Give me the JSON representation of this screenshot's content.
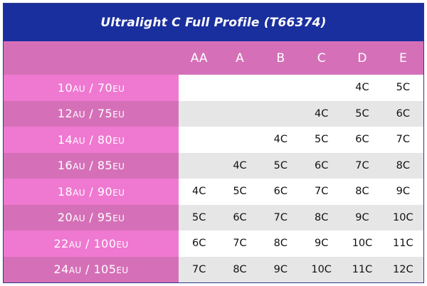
{
  "title": "Ultralight C Full Profile (T66374)",
  "columns": [
    "AA",
    "A",
    "B",
    "C",
    "D",
    "E"
  ],
  "rows": [
    {
      "au": "10",
      "au_unit": "AU",
      "sep": " / ",
      "eu": "70",
      "eu_unit": "EU",
      "cells": [
        "",
        "",
        "",
        "",
        "4C",
        "5C"
      ]
    },
    {
      "au": "12",
      "au_unit": "AU",
      "sep": " / ",
      "eu": "75",
      "eu_unit": "EU",
      "cells": [
        "",
        "",
        "",
        "4C",
        "5C",
        "6C"
      ]
    },
    {
      "au": "14",
      "au_unit": "AU",
      "sep": " / ",
      "eu": "80",
      "eu_unit": "EU",
      "cells": [
        "",
        "",
        "4C",
        "5C",
        "6C",
        "7C"
      ]
    },
    {
      "au": "16",
      "au_unit": "AU",
      "sep": " / ",
      "eu": "85",
      "eu_unit": "EU",
      "cells": [
        "",
        "4C",
        "5C",
        "6C",
        "7C",
        "8C"
      ]
    },
    {
      "au": "18",
      "au_unit": "AU",
      "sep": " / ",
      "eu": "90",
      "eu_unit": "EU",
      "cells": [
        "4C",
        "5C",
        "6C",
        "7C",
        "8C",
        "9C"
      ]
    },
    {
      "au": "20",
      "au_unit": "AU",
      "sep": " / ",
      "eu": "95",
      "eu_unit": "EU",
      "cells": [
        "5C",
        "6C",
        "7C",
        "8C",
        "9C",
        "10C"
      ]
    },
    {
      "au": "22",
      "au_unit": "AU",
      "sep": " / ",
      "eu": "100",
      "eu_unit": "EU",
      "cells": [
        "6C",
        "7C",
        "8C",
        "9C",
        "10C",
        "11C"
      ]
    },
    {
      "au": "24",
      "au_unit": "AU",
      "sep": " / ",
      "eu": "105",
      "eu_unit": "EU",
      "cells": [
        "7C",
        "8C",
        "9C",
        "10C",
        "11C",
        "12C"
      ]
    }
  ],
  "colors": {
    "title_bg": "#1a2f9e",
    "header_bg": "#d570b8",
    "label_bg_light": "#ef78d0",
    "label_bg_dark": "#d570b8",
    "cell_bg_white": "#ffffff",
    "cell_bg_grey": "#e6e6e6"
  }
}
